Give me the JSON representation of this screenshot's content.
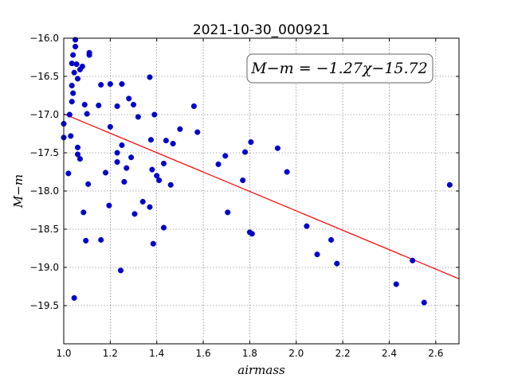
{
  "chart_data": {
    "type": "scatter",
    "title": "2021-10-30_000921",
    "xlabel": "airmass",
    "ylabel": "M−m",
    "xlim": [
      1.0,
      2.7
    ],
    "ylim": [
      -20.0,
      -16.0
    ],
    "y_inverted": true,
    "grid": true,
    "x_ticks": [
      1.0,
      1.2,
      1.4,
      1.6,
      1.8,
      2.0,
      2.2,
      2.4,
      2.6
    ],
    "x_tick_labels": [
      "1.0",
      "1.2",
      "1.4",
      "1.6",
      "1.8",
      "2.0",
      "2.2",
      "2.4",
      "2.6"
    ],
    "y_ticks": [
      -16.0,
      -16.5,
      -17.0,
      -17.5,
      -18.0,
      -18.5,
      -19.0,
      -19.5
    ],
    "y_tick_labels": [
      "−16.0",
      "−16.5",
      "−17.0",
      "−17.5",
      "−18.0",
      "−18.5",
      "−19.0",
      "−19.5"
    ],
    "annotation": "M−m = −1.27χ−15.72",
    "fit": {
      "slope": -1.27,
      "intercept": -15.72,
      "color": "#ff0000"
    },
    "point_color": "#0000cc",
    "points": [
      [
        1.05,
        -16.02
      ],
      [
        1.05,
        -16.11
      ],
      [
        1.04,
        -16.22
      ],
      [
        1.035,
        -16.33
      ],
      [
        1.055,
        -16.34
      ],
      [
        1.045,
        -16.45
      ],
      [
        1.06,
        -16.53
      ],
      [
        1.035,
        -16.62
      ],
      [
        1.04,
        -16.72
      ],
      [
        1.035,
        -16.83
      ],
      [
        1.08,
        -16.37
      ],
      [
        1.07,
        -16.41
      ],
      [
        1.11,
        -16.19
      ],
      [
        1.11,
        -16.22
      ],
      [
        1.025,
        -17.0
      ],
      [
        1.0,
        -17.12
      ],
      [
        1.0,
        -17.3
      ],
      [
        1.03,
        -17.28
      ],
      [
        1.06,
        -17.43
      ],
      [
        1.06,
        -17.52
      ],
      [
        1.07,
        -17.58
      ],
      [
        1.02,
        -17.77
      ],
      [
        1.09,
        -16.87
      ],
      [
        1.1,
        -16.99
      ],
      [
        1.105,
        -17.91
      ],
      [
        1.085,
        -18.28
      ],
      [
        1.095,
        -18.65
      ],
      [
        1.045,
        -19.4
      ],
      [
        1.15,
        -16.88
      ],
      [
        1.16,
        -16.61
      ],
      [
        1.2,
        -16.6
      ],
      [
        1.25,
        -16.6
      ],
      [
        1.23,
        -16.89
      ],
      [
        1.2,
        -17.16
      ],
      [
        1.25,
        -17.4
      ],
      [
        1.23,
        -17.5
      ],
      [
        1.23,
        -17.62
      ],
      [
        1.18,
        -17.76
      ],
      [
        1.27,
        -17.7
      ],
      [
        1.26,
        -17.88
      ],
      [
        1.29,
        -17.56
      ],
      [
        1.195,
        -18.19
      ],
      [
        1.16,
        -18.64
      ],
      [
        1.245,
        -19.04
      ],
      [
        1.28,
        -16.79
      ],
      [
        1.3,
        -16.87
      ],
      [
        1.32,
        -17.03
      ],
      [
        1.37,
        -16.51
      ],
      [
        1.375,
        -17.33
      ],
      [
        1.38,
        -17.72
      ],
      [
        1.4,
        -17.8
      ],
      [
        1.41,
        -17.86
      ],
      [
        1.39,
        -17.0
      ],
      [
        1.43,
        -17.64
      ],
      [
        1.44,
        -17.34
      ],
      [
        1.47,
        -17.38
      ],
      [
        1.46,
        -17.92
      ],
      [
        1.34,
        -18.14
      ],
      [
        1.305,
        -18.3
      ],
      [
        1.37,
        -18.21
      ],
      [
        1.43,
        -18.48
      ],
      [
        1.385,
        -18.69
      ],
      [
        1.5,
        -17.19
      ],
      [
        1.56,
        -16.89
      ],
      [
        1.575,
        -17.23
      ],
      [
        1.665,
        -17.65
      ],
      [
        1.695,
        -17.54
      ],
      [
        1.705,
        -18.28
      ],
      [
        1.77,
        -17.86
      ],
      [
        1.78,
        -17.49
      ],
      [
        1.805,
        -17.36
      ],
      [
        1.8,
        -18.54
      ],
      [
        1.81,
        -18.56
      ],
      [
        1.92,
        -17.44
      ],
      [
        1.96,
        -17.75
      ],
      [
        2.045,
        -18.46
      ],
      [
        2.09,
        -18.83
      ],
      [
        2.15,
        -18.64
      ],
      [
        2.175,
        -18.95
      ],
      [
        2.43,
        -19.22
      ],
      [
        2.5,
        -18.91
      ],
      [
        2.55,
        -19.46
      ],
      [
        2.66,
        -17.92
      ]
    ]
  }
}
